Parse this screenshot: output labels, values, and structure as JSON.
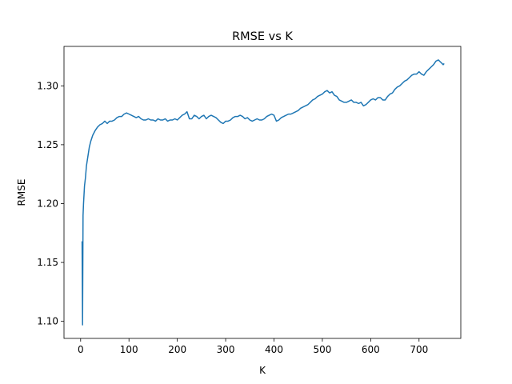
{
  "chart_data": {
    "type": "line",
    "title": "RMSE vs K",
    "xlabel": "K",
    "ylabel": "RMSE",
    "xlim": [
      -34.4,
      786.4
    ],
    "ylim": [
      1.0855,
      1.3335
    ],
    "xticks": [
      0,
      100,
      200,
      300,
      400,
      500,
      600,
      700
    ],
    "yticks": [
      1.1,
      1.15,
      1.2,
      1.25,
      1.3
    ],
    "xtick_labels": [
      "0",
      "100",
      "200",
      "300",
      "400",
      "500",
      "600",
      "700"
    ],
    "ytick_labels": [
      "1.10",
      "1.15",
      "1.20",
      "1.25",
      "1.30"
    ],
    "grid": false,
    "legend": "none",
    "series": [
      {
        "color": "#1f77b4",
        "x": [
          3,
          4,
          5,
          6,
          8,
          10,
          12,
          15,
          18,
          21,
          25,
          30,
          35,
          40,
          45,
          50,
          55,
          60,
          65,
          70,
          75,
          80,
          85,
          90,
          95,
          100,
          105,
          110,
          115,
          120,
          125,
          130,
          135,
          140,
          145,
          150,
          155,
          160,
          165,
          170,
          175,
          180,
          185,
          190,
          195,
          200,
          205,
          210,
          215,
          220,
          225,
          230,
          235,
          240,
          245,
          250,
          255,
          260,
          265,
          270,
          275,
          280,
          285,
          290,
          295,
          300,
          305,
          310,
          315,
          320,
          325,
          330,
          335,
          340,
          345,
          350,
          355,
          360,
          365,
          370,
          375,
          380,
          385,
          390,
          395,
          400,
          405,
          410,
          415,
          420,
          425,
          430,
          435,
          440,
          445,
          450,
          455,
          460,
          465,
          470,
          475,
          480,
          485,
          490,
          495,
          500,
          505,
          510,
          515,
          520,
          525,
          530,
          535,
          540,
          545,
          550,
          555,
          560,
          565,
          570,
          575,
          580,
          585,
          590,
          595,
          600,
          605,
          610,
          615,
          620,
          625,
          630,
          635,
          640,
          645,
          650,
          655,
          660,
          665,
          670,
          675,
          680,
          685,
          690,
          695,
          700,
          705,
          710,
          715,
          720,
          725,
          730,
          735,
          740,
          745,
          750,
          752
        ],
        "y": [
          1.168,
          1.097,
          1.19,
          1.2,
          1.215,
          1.222,
          1.232,
          1.24,
          1.248,
          1.253,
          1.258,
          1.262,
          1.265,
          1.267,
          1.268,
          1.27,
          1.268,
          1.27,
          1.27,
          1.271,
          1.273,
          1.274,
          1.274,
          1.276,
          1.277,
          1.276,
          1.275,
          1.274,
          1.273,
          1.274,
          1.272,
          1.271,
          1.271,
          1.272,
          1.271,
          1.271,
          1.27,
          1.272,
          1.271,
          1.271,
          1.272,
          1.27,
          1.271,
          1.271,
          1.272,
          1.271,
          1.273,
          1.275,
          1.276,
          1.278,
          1.272,
          1.272,
          1.275,
          1.274,
          1.272,
          1.274,
          1.275,
          1.272,
          1.274,
          1.275,
          1.274,
          1.273,
          1.271,
          1.269,
          1.268,
          1.27,
          1.27,
          1.271,
          1.273,
          1.274,
          1.274,
          1.275,
          1.274,
          1.272,
          1.273,
          1.271,
          1.27,
          1.271,
          1.272,
          1.271,
          1.271,
          1.272,
          1.274,
          1.275,
          1.276,
          1.275,
          1.27,
          1.271,
          1.273,
          1.274,
          1.275,
          1.276,
          1.276,
          1.277,
          1.278,
          1.279,
          1.281,
          1.282,
          1.283,
          1.284,
          1.286,
          1.288,
          1.289,
          1.291,
          1.292,
          1.293,
          1.295,
          1.296,
          1.294,
          1.295,
          1.292,
          1.291,
          1.288,
          1.287,
          1.286,
          1.286,
          1.287,
          1.288,
          1.286,
          1.286,
          1.285,
          1.286,
          1.283,
          1.284,
          1.286,
          1.288,
          1.289,
          1.288,
          1.29,
          1.29,
          1.288,
          1.288,
          1.291,
          1.293,
          1.294,
          1.297,
          1.299,
          1.3,
          1.302,
          1.304,
          1.305,
          1.307,
          1.309,
          1.31,
          1.31,
          1.312,
          1.31,
          1.309,
          1.312,
          1.314,
          1.316,
          1.318,
          1.321,
          1.322,
          1.32,
          1.318,
          1.319
        ]
      }
    ]
  }
}
